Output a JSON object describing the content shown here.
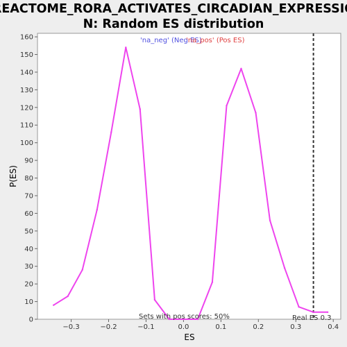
{
  "chart_data": {
    "type": "line",
    "title_line1": "REACTOME_RORA_ACTIVATES_CIRCADIAN_EXPRESSIO",
    "title_line2": "N: Random ES distribution",
    "xlabel": "ES",
    "ylabel": "P(ES)",
    "xlim": [
      -0.39,
      0.42
    ],
    "ylim": [
      0,
      162
    ],
    "x_ticks": [
      -0.3,
      -0.2,
      -0.1,
      0.0,
      0.1,
      0.2,
      0.3,
      0.4
    ],
    "x_tick_labels": [
      "−0.3",
      "−0.2",
      "−0.1",
      "0.0",
      "0.1",
      "0.2",
      "0.3",
      "0.4"
    ],
    "y_ticks": [
      0,
      10,
      20,
      30,
      40,
      50,
      60,
      70,
      80,
      90,
      100,
      110,
      120,
      130,
      140,
      150,
      160
    ],
    "grid": false,
    "legend": [
      {
        "label": "'na_neg' (Neg ES)",
        "color": "#5050e0"
      },
      {
        "label": "'na_pos' (Pos ES)",
        "color": "#e04040"
      }
    ],
    "series": [
      {
        "color": "#ee44ee",
        "x": [
          -0.347,
          -0.309,
          -0.27,
          -0.231,
          -0.193,
          -0.154,
          -0.116,
          -0.077,
          -0.038,
          0.0,
          0.038,
          0.077,
          0.115,
          0.154,
          0.193,
          0.231,
          0.27,
          0.308,
          0.347,
          0.385
        ],
        "y": [
          8,
          13,
          28,
          62,
          106,
          154,
          119,
          11,
          0,
          0,
          0,
          21,
          121,
          142,
          117,
          56,
          29,
          7,
          4,
          4
        ]
      }
    ],
    "real_es": {
      "value": 0.347,
      "label": "Real ES 0.3"
    },
    "annotation": "Sets with pos scores: 50%"
  }
}
